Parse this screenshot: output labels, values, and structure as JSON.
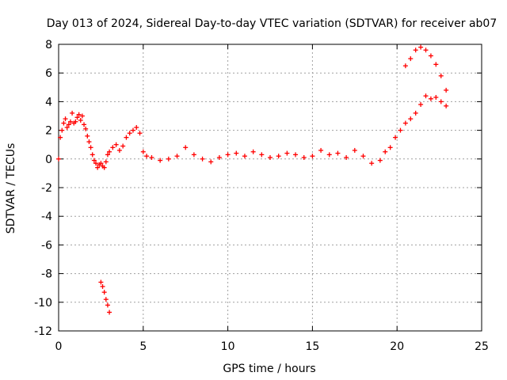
{
  "chart_data": {
    "type": "scatter",
    "title": "Day 013 of 2024, Sidereal Day-to-day VTEC variation (SDTVAR) for receiver ab07",
    "xlabel": "GPS time / hours",
    "ylabel": "SDTVAR / TECUs",
    "xlim": [
      0,
      25
    ],
    "ylim": [
      -12,
      8
    ],
    "xticks": [
      0,
      5,
      10,
      15,
      20,
      25
    ],
    "yticks": [
      -12,
      -10,
      -8,
      -6,
      -4,
      -2,
      0,
      2,
      4,
      6,
      8
    ],
    "grid": true,
    "legend": "none",
    "marker": "+",
    "colors": {
      "series": "#ff0000",
      "grid": "#a0a0a0",
      "axis": "#000000"
    },
    "series": [
      {
        "name": "SDTVAR",
        "x": [
          0.0,
          0.1,
          0.2,
          0.3,
          0.4,
          0.5,
          0.6,
          0.7,
          0.8,
          0.9,
          1.0,
          1.1,
          1.2,
          1.3,
          1.4,
          1.5,
          1.6,
          1.7,
          1.8,
          1.9,
          2.0,
          2.1,
          2.2,
          2.3,
          2.4,
          2.5,
          2.6,
          2.7,
          2.8,
          2.9,
          3.0,
          3.2,
          3.4,
          3.6,
          3.8,
          4.0,
          4.2,
          4.4,
          4.6,
          4.8,
          5.0,
          5.2,
          5.5,
          6.0,
          6.5,
          7.0,
          7.5,
          8.0,
          8.5,
          9.0,
          9.5,
          10.0,
          10.5,
          11.0,
          11.5,
          12.0,
          12.5,
          13.0,
          13.5,
          14.0,
          14.5,
          15.0,
          15.5,
          16.0,
          16.5,
          17.0,
          17.5,
          18.0,
          18.5,
          19.0,
          19.3,
          19.6,
          19.9,
          20.2,
          20.5,
          20.8,
          21.1,
          21.4,
          21.7,
          22.0,
          22.3,
          22.6,
          22.9,
          20.5,
          20.8,
          21.1,
          21.4,
          21.7,
          22.0,
          22.3,
          22.6,
          22.9,
          2.5,
          2.6,
          2.7,
          2.8,
          2.9,
          3.0
        ],
        "y": [
          0.0,
          1.5,
          2.0,
          2.5,
          2.8,
          2.2,
          2.4,
          2.6,
          3.2,
          2.5,
          2.6,
          2.9,
          3.1,
          2.7,
          3.0,
          2.4,
          2.1,
          1.6,
          1.2,
          0.8,
          0.3,
          -0.1,
          -0.3,
          -0.6,
          -0.4,
          -0.3,
          -0.5,
          -0.6,
          -0.2,
          0.3,
          0.5,
          0.8,
          1.0,
          0.6,
          0.9,
          1.5,
          1.8,
          2.0,
          2.2,
          1.8,
          0.5,
          0.2,
          0.1,
          -0.1,
          0.0,
          0.2,
          0.8,
          0.3,
          0.0,
          -0.2,
          0.1,
          0.3,
          0.4,
          0.2,
          0.5,
          0.3,
          0.1,
          0.2,
          0.4,
          0.3,
          0.1,
          0.2,
          0.6,
          0.3,
          0.4,
          0.1,
          0.6,
          0.2,
          -0.3,
          -0.1,
          0.5,
          0.8,
          1.5,
          2.0,
          2.5,
          2.8,
          3.2,
          3.8,
          4.4,
          4.2,
          4.3,
          4.0,
          3.7,
          6.5,
          7.0,
          7.6,
          7.8,
          7.6,
          7.2,
          6.6,
          5.8,
          4.8,
          -8.6,
          -8.9,
          -9.3,
          -9.8,
          -10.2,
          -10.7
        ]
      }
    ]
  }
}
